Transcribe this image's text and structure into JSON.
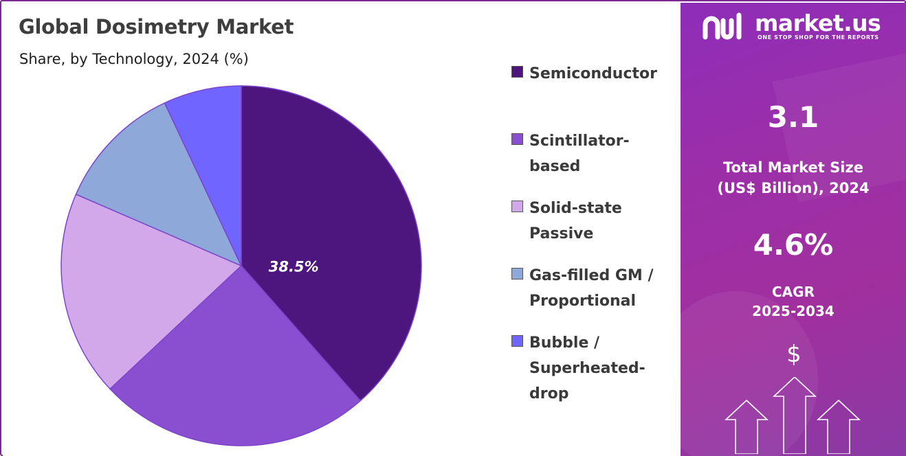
{
  "chart_data": {
    "type": "pie",
    "title": "Global Dosimetry Market",
    "subtitle": "Share, by Technology, 2024 (%)",
    "categories": [
      "Semiconductor",
      "Scintillator-based",
      "Solid-state Passive",
      "Gas-filled GM / Proportional",
      "Bubble / Superheated-drop"
    ],
    "values": [
      38.5,
      24.5,
      18.5,
      11.5,
      7.0
    ],
    "data_labels": [
      "38.5%",
      "",
      "",
      "",
      ""
    ],
    "colors": [
      "#4d167f",
      "#8a4fd0",
      "#d3a8ea",
      "#8ea8da",
      "#7065ff"
    ],
    "legend_position": "right"
  },
  "legend": {
    "items": [
      {
        "lines": [
          "Semiconductor"
        ]
      },
      {
        "lines": [
          "Scintillator-",
          "based"
        ]
      },
      {
        "lines": [
          "Solid-state",
          "Passive"
        ]
      },
      {
        "lines": [
          "Gas-filled GM /",
          "Proportional"
        ]
      },
      {
        "lines": [
          "Bubble /",
          "Superheated-",
          "drop"
        ]
      }
    ]
  },
  "brand": {
    "name": "market.us",
    "tagline": "ONE STOP SHOP FOR THE REPORTS"
  },
  "stats": {
    "market_size_value": "3.1",
    "market_size_label_1": "Total Market Size",
    "market_size_label_2": "(US$ Billion), 2024",
    "cagr_value": "4.6%",
    "cagr_label_1": "CAGR",
    "cagr_label_2": "2025-2034"
  },
  "icons": {
    "dollar": "$",
    "arrows": "growth-arrows-icon"
  }
}
